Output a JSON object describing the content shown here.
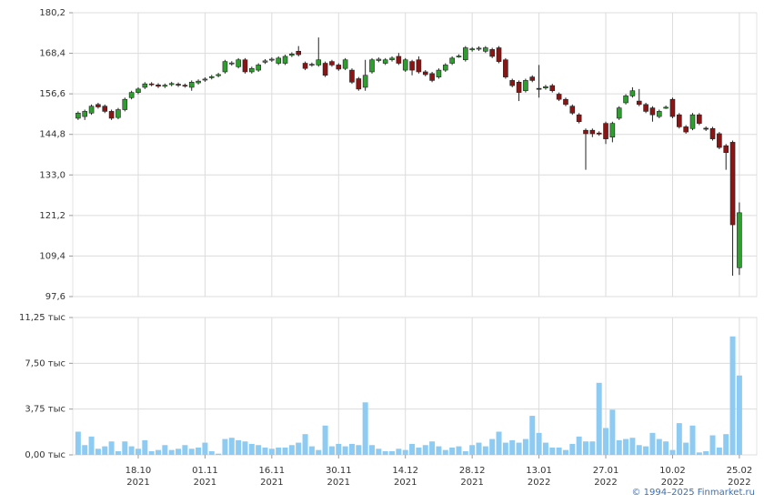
{
  "chart_data": {
    "type": "candlestick",
    "open": [
      149.5,
      150,
      151,
      153.5,
      153,
      151.5,
      149.7,
      152,
      155.5,
      157,
      158.5,
      159.5,
      159.2,
      158.8,
      159.3,
      159.4,
      159.1,
      158.5,
      159.8,
      160.6,
      161.3,
      161.9,
      163,
      165.3,
      164.5,
      166.5,
      163,
      163.5,
      165.8,
      166.4,
      165.5,
      165.5,
      167.8,
      169,
      165.5,
      165,
      165,
      165.5,
      166,
      165,
      164,
      163.5,
      161,
      158.5,
      163,
      166.3,
      165.5,
      166.5,
      167.5,
      163.5,
      166,
      166.5,
      163,
      162.5,
      161.5,
      163.5,
      165.5,
      167.3,
      166.5,
      169.4,
      169.6,
      169,
      169.5,
      170,
      166.5,
      160.5,
      160,
      157.5,
      161.5,
      158.2,
      158.3,
      159,
      156.5,
      155,
      153,
      150.5,
      146,
      146,
      145.2,
      148,
      144,
      149.5,
      154,
      156,
      154.5,
      153.5,
      152.5,
      150,
      152.4,
      155,
      150.5,
      147,
      146.5,
      150.5,
      146.6,
      146.5,
      145,
      141.5,
      142.5,
      106
    ],
    "high": [
      151.5,
      152,
      153.5,
      154,
      153.5,
      152,
      152.5,
      155.5,
      157.5,
      158.5,
      160,
      160,
      159.7,
      159.6,
      160.1,
      159.9,
      159.6,
      160.5,
      160.8,
      161.4,
      162.1,
      162.7,
      166.5,
      166.1,
      167,
      167,
      164.5,
      165.5,
      166.7,
      167.2,
      167.5,
      168,
      168.7,
      170.5,
      166,
      165.7,
      173,
      166,
      166.5,
      165.5,
      167,
      164,
      161.5,
      166.5,
      167,
      167.2,
      167,
      167.5,
      168.5,
      167,
      166.5,
      167.5,
      163.5,
      163,
      164,
      165.5,
      167.5,
      168.1,
      170.5,
      170.2,
      170.4,
      170.5,
      170,
      170.5,
      167,
      161,
      160.5,
      161,
      162,
      165,
      159.2,
      159.5,
      157,
      155.5,
      153.5,
      151,
      146.5,
      146.5,
      145.7,
      148.5,
      148.5,
      153,
      156.5,
      158.5,
      158,
      154,
      153,
      152,
      153.2,
      155.5,
      151,
      147.5,
      151,
      151,
      147.1,
      147,
      145.5,
      142,
      143,
      125
    ],
    "low": [
      149,
      149,
      150.5,
      152.3,
      151,
      149,
      149.2,
      151.5,
      155,
      156.5,
      158,
      158.8,
      158.3,
      158.3,
      158.8,
      158.6,
      158.4,
      157.5,
      159.3,
      160.1,
      160.8,
      161.4,
      162.5,
      164.8,
      164,
      162.5,
      162.5,
      163,
      165.3,
      165.9,
      165,
      165,
      167.3,
      167.5,
      163.5,
      164.5,
      164.5,
      161.5,
      164.5,
      163.3,
      163.5,
      159.5,
      157.5,
      157.5,
      162.5,
      165.8,
      165,
      166,
      165,
      163,
      162,
      162.5,
      161.7,
      160,
      161,
      163,
      165,
      167.1,
      166,
      168.9,
      169.1,
      168.5,
      167,
      165.5,
      161,
      158.5,
      154.5,
      157,
      160,
      155.5,
      157.8,
      157,
      154.5,
      153,
      150.5,
      148,
      134.5,
      144,
      144.4,
      142,
      142.5,
      149,
      153.5,
      155.5,
      153,
      151,
      148.5,
      149.5,
      152.2,
      149.5,
      146.5,
      145,
      146,
      147.5,
      145.8,
      143,
      140.5,
      134.5,
      103.7,
      103.9
    ],
    "close": [
      151,
      151.5,
      153,
      152.8,
      151.5,
      149.5,
      152,
      155,
      157,
      158,
      159.5,
      159.3,
      158.8,
      159.1,
      159.6,
      159.1,
      158.9,
      160,
      160.3,
      160.9,
      161.6,
      162.2,
      166,
      165.6,
      166.5,
      163,
      164,
      165,
      166.2,
      166.7,
      167,
      167.5,
      168.2,
      168,
      164,
      165.2,
      166.5,
      162,
      165,
      163.8,
      166.5,
      160,
      158,
      162,
      166.5,
      166.7,
      166.5,
      167,
      165.5,
      166.5,
      163.5,
      163,
      162.2,
      160.5,
      163.5,
      165,
      167,
      167.6,
      170,
      169.7,
      169.9,
      170,
      167.5,
      166,
      161.5,
      159,
      157,
      160.5,
      160.5,
      157.9,
      158.7,
      157.5,
      155,
      153.5,
      151,
      148.5,
      145,
      145,
      144.9,
      143.5,
      148,
      152.5,
      156,
      157.5,
      153.5,
      151.5,
      150.5,
      151.5,
      152.7,
      150,
      147,
      145.5,
      150.5,
      148,
      146.3,
      143.5,
      141,
      139.5,
      118.5,
      122
    ],
    "volume": [
      1.9,
      0.8,
      1.5,
      0.5,
      0.7,
      1.1,
      0.3,
      1.1,
      0.7,
      0.5,
      1.2,
      0.3,
      0.4,
      0.8,
      0.4,
      0.5,
      0.8,
      0.5,
      0.6,
      1.0,
      0.3,
      0.1,
      1.3,
      1.4,
      1.2,
      1.1,
      0.9,
      0.8,
      0.6,
      0.5,
      0.6,
      0.6,
      0.8,
      1.0,
      1.7,
      0.7,
      0.4,
      2.4,
      0.7,
      0.9,
      0.7,
      0.9,
      0.8,
      4.3,
      0.8,
      0.5,
      0.3,
      0.3,
      0.5,
      0.4,
      0.9,
      0.6,
      0.8,
      1.1,
      0.7,
      0.4,
      0.6,
      0.7,
      0.3,
      0.8,
      1.0,
      0.7,
      1.3,
      1.9,
      1.0,
      1.2,
      1.0,
      1.3,
      3.2,
      1.8,
      1.0,
      0.6,
      0.6,
      0.4,
      0.9,
      1.5,
      1.1,
      1.1,
      5.9,
      2.2,
      3.7,
      1.2,
      1.3,
      1.4,
      0.8,
      0.7,
      1.8,
      1.3,
      1.1,
      0.4,
      2.6,
      1.0,
      2.4,
      0.2,
      0.3,
      1.6,
      0.6,
      1.7,
      9.7,
      6.5
    ],
    "up_color": "#2e9e2e",
    "down_color": "#8b1414",
    "volume_color": "#8ecbf3",
    "xlim": [
      -0.8,
      101.6
    ],
    "xticks": [
      {
        "value": 9,
        "label": "18.10",
        "year": "2021"
      },
      {
        "value": 19,
        "label": "01.11",
        "year": "2021"
      },
      {
        "value": 29,
        "label": "16.11",
        "year": "2021"
      },
      {
        "value": 39,
        "label": "30.11",
        "year": "2021"
      },
      {
        "value": 49,
        "label": "14.12",
        "year": "2021"
      },
      {
        "value": 59,
        "label": "28.12",
        "year": "2021"
      },
      {
        "value": 69,
        "label": "13.01",
        "year": "2022"
      },
      {
        "value": 79,
        "label": "27.01",
        "year": "2022"
      },
      {
        "value": 89,
        "label": "10.02",
        "year": "2022"
      },
      {
        "value": 99,
        "label": "25.02",
        "year": "2022"
      }
    ],
    "ylim": [
      97.6,
      180.2
    ],
    "yticks": [
      {
        "value": 97.6,
        "label": "97,6"
      },
      {
        "value": 109.4,
        "label": "109,4"
      },
      {
        "value": 121.2,
        "label": "121,2"
      },
      {
        "value": 133,
        "label": "133,0"
      },
      {
        "value": 144.8,
        "label": "144,8"
      },
      {
        "value": 156.6,
        "label": "156,6"
      },
      {
        "value": 168.4,
        "label": "168,4"
      },
      {
        "value": 180.2,
        "label": "180,2"
      }
    ],
    "volume_ylim": [
      0,
      11.25
    ],
    "volume_yticks": [
      {
        "value": 0,
        "label": "0,00 тыс"
      },
      {
        "value": 3.75,
        "label": "3,75 тыс"
      },
      {
        "value": 7.5,
        "label": "7,50 тыс"
      },
      {
        "value": 11.25,
        "label": "11,25 тыс"
      }
    ],
    "grid": true
  },
  "footer": "© 1994–2025 Finmarket.ru"
}
